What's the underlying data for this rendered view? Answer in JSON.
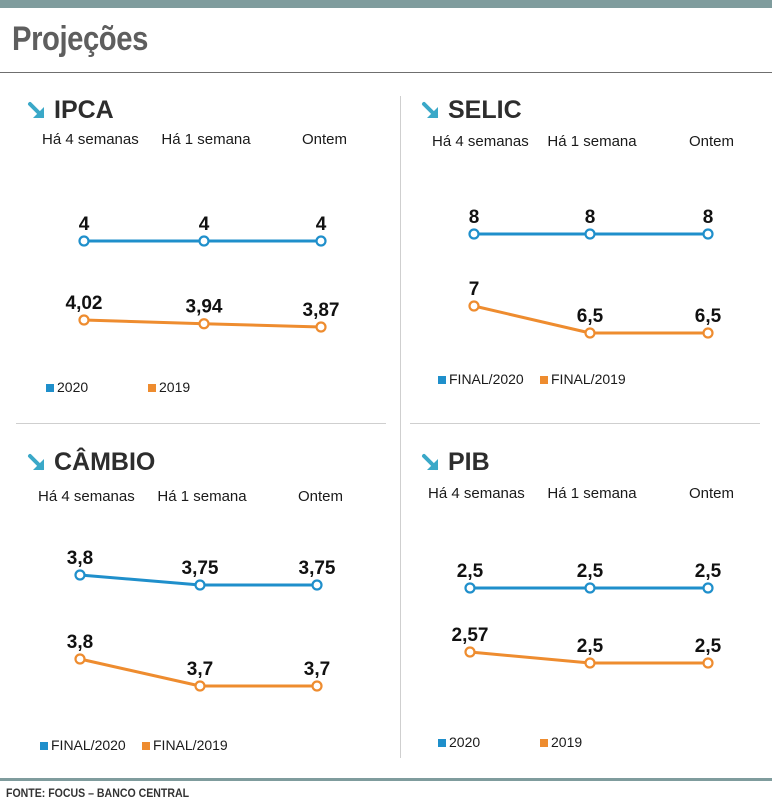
{
  "page": {
    "title": "Projeções",
    "source": "FONTE: FOCUS – BANCO CENTRAL"
  },
  "colors": {
    "series_2020": "#1f8fcb",
    "series_2019": "#ee8c2f",
    "arrow": "#3aa8c8"
  },
  "chart_data": [
    {
      "type": "line",
      "title": "IPCA",
      "icon": "arrow-down-right-icon",
      "categories": [
        "Há 4 semanas",
        "Há 1 semana",
        "Ontem"
      ],
      "series": [
        {
          "name": "2020",
          "values": [
            4,
            4,
            4
          ],
          "labels": [
            "4",
            "4",
            "4"
          ]
        },
        {
          "name": "2019",
          "values": [
            4.02,
            3.94,
            3.87
          ],
          "labels": [
            "4,02",
            "3,94",
            "3,87"
          ]
        }
      ]
    },
    {
      "type": "line",
      "title": "SELIC",
      "icon": "arrow-down-right-icon",
      "categories": [
        "Há 4 semanas",
        "Há 1 semana",
        "Ontem"
      ],
      "series": [
        {
          "name": "FINAL/2020",
          "values": [
            8,
            8,
            8
          ],
          "labels": [
            "8",
            "8",
            "8"
          ]
        },
        {
          "name": "FINAL/2019",
          "values": [
            7,
            6.5,
            6.5
          ],
          "labels": [
            "7",
            "6,5",
            "6,5"
          ]
        }
      ]
    },
    {
      "type": "line",
      "title": "CÂMBIO",
      "icon": "arrow-down-right-icon",
      "categories": [
        "Há 4 semanas",
        "Há 1 semana",
        "Ontem"
      ],
      "series": [
        {
          "name": "FINAL/2020",
          "values": [
            3.8,
            3.75,
            3.75
          ],
          "labels": [
            "3,8",
            "3,75",
            "3,75"
          ]
        },
        {
          "name": "FINAL/2019",
          "values": [
            3.8,
            3.7,
            3.7
          ],
          "labels": [
            "3,8",
            "3,7",
            "3,7"
          ]
        }
      ]
    },
    {
      "type": "line",
      "title": "PIB",
      "icon": "arrow-down-right-icon",
      "categories": [
        "Há 4 semanas",
        "Há 1 semana",
        "Ontem"
      ],
      "series": [
        {
          "name": "2020",
          "values": [
            2.5,
            2.5,
            2.5
          ],
          "labels": [
            "2,5",
            "2,5",
            "2,5"
          ]
        },
        {
          "name": "2019",
          "values": [
            2.57,
            2.5,
            2.5
          ],
          "labels": [
            "2,57",
            "2,5",
            "2,5"
          ]
        }
      ]
    }
  ]
}
